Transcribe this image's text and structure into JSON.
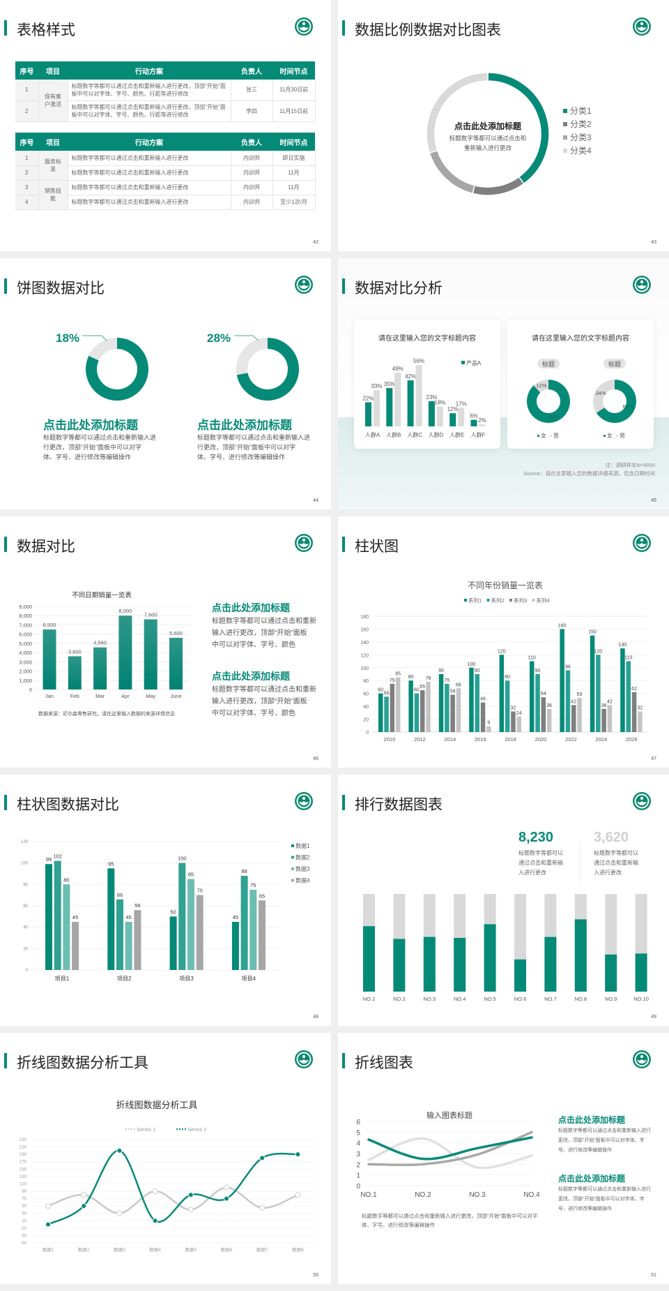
{
  "colors": {
    "accent": "#068a78",
    "accent2": "#30a192",
    "accent3": "#6dbdb2",
    "gray_dark": "#7f7f7f",
    "gray_mid": "#a6a6a6",
    "gray_light": "#d9d9d9"
  },
  "logo": {
    "icon": "university-emblem-logo"
  },
  "slide42": {
    "title": "表格样式",
    "page": "42",
    "tables": [
      {
        "headers": [
          "序号",
          "项目",
          "行动方案",
          "负责人",
          "时间节点"
        ],
        "groups": [
          {
            "item": "保有客户激活",
            "rows": [
              {
                "no": "1",
                "plan": "标题数字等都可以通过点击和重新输入进行更改，顶部“开始”面板中可以对字体、字号、颜色、行距等进行修改",
                "owner": "张三",
                "time": "11月30日前"
              },
              {
                "no": "2",
                "plan": "标题数字等都可以通过点击和重新输入进行更改，顶部“开始”面板中可以对字体、字号、颜色、行距等进行修改",
                "owner": "李四",
                "time": "11月15日前"
              }
            ]
          }
        ]
      },
      {
        "headers": [
          "序号",
          "项目",
          "行动方案",
          "负责人",
          "时间节点"
        ],
        "groups": [
          {
            "item": "服务标准",
            "rows": [
              {
                "no": "1",
                "plan": "标题数字等都可以通过点击和重新输入进行更改",
                "owner": "内训师",
                "time": "即日实施"
              },
              {
                "no": "2",
                "plan": "标题数字等都可以通过点击和重新输入进行更改",
                "owner": "内训师",
                "time": "11月"
              }
            ]
          },
          {
            "item": "销售技能",
            "rows": [
              {
                "no": "3",
                "plan": "标题数字等都可以通过点击和重新输入进行更改",
                "owner": "内训师",
                "time": "11月"
              },
              {
                "no": "4",
                "plan": "标题数字等都可以通过点击和重新输入进行更改",
                "owner": "内训师",
                "time": "至少1次/月"
              }
            ]
          }
        ]
      }
    ]
  },
  "slide43": {
    "title": "数据比例数据对比图表",
    "page": "43",
    "center_title": "点击此处添加标题",
    "center_lines": [
      "标题数字等都可以通过点击和",
      "重新输入进行更改"
    ]
  },
  "slide44": {
    "title": "饼图数据对比",
    "page": "44",
    "blocks": [
      {
        "heading": "点击此处添加标题",
        "lines": [
          "标题数字等都可以通过点击和重新输入进",
          "行更改，顶部“开始”面板中可以对字",
          "体、字号、进行修改等编辑操作"
        ]
      },
      {
        "heading": "点击此处添加标题",
        "lines": [
          "标题数字等都可以通过点击和重新输入进",
          "行更改，顶部“开始”面板中可以对字",
          "体、字号、进行修改等编辑操作"
        ]
      }
    ]
  },
  "slide45": {
    "title": "数据对比分析",
    "page": "45",
    "note": "注：调研样本N=9000",
    "source": "Source：请在这里输入您的数据详细来源，包含日期时间"
  },
  "slide46": {
    "title": "数据对比",
    "page": "46",
    "source": "数据来源：尼尔森零售研究，请在这里输入数据的来源详情信息",
    "blocks": [
      {
        "heading": "点击此处添加标题",
        "lines": [
          "标题数字等都可以通过点击和重新",
          "输入进行更改，顶部“开始”面板",
          "中可以对字体、字号、颜色"
        ]
      },
      {
        "heading": "点击此处添加标题",
        "lines": [
          "标题数字等都可以通过点击和重新",
          "输入进行更改，顶部“开始”面板",
          "中可以对字体、字号、颜色"
        ]
      }
    ]
  },
  "slide47": {
    "title": "柱状图",
    "page": "47"
  },
  "slide48": {
    "title": "柱状图数据对比",
    "page": "48"
  },
  "slide49": {
    "title": "排行数据图表",
    "page": "49",
    "stats": [
      {
        "value": "8,230",
        "lines": [
          "标题数字等都可以",
          "通过点击和重新输",
          "入进行更改"
        ]
      },
      {
        "value": "3,620",
        "lines": [
          "标题数字等都可以",
          "通过点击和重新输",
          "入进行更改"
        ]
      }
    ]
  },
  "slide50": {
    "title": "折线图数据分析工具",
    "page": "50"
  },
  "slide51": {
    "title": "折线图表",
    "page": "51",
    "bottom_lines": [
      "标题数字等都可以通过点击和重新输入进行更改，顶部“开始”面板中可以对字",
      "体、字号、进行修改等编辑操作"
    ],
    "blocks": [
      {
        "heading": "点击此处添加标题",
        "lines": [
          "标题数字等都可以通过点击和重新输入进行",
          "更改，顶部“开始”面板中可以对字体、字",
          "号、进行修改等编辑操作"
        ]
      },
      {
        "heading": "点击此处添加标题",
        "lines": [
          "标题数字等都可以通过点击和重新输入进行",
          "更改，顶部“开始”面板中可以对字体、字",
          "号、进行修改等编辑操作"
        ]
      }
    ]
  },
  "chart_data": [
    {
      "type": "pie",
      "slide": "43",
      "categories": [
        "分类1",
        "分类2",
        "分类3",
        "分类4"
      ],
      "values": [
        40,
        14,
        16,
        30
      ],
      "legend": "right",
      "colors": [
        "#068a78",
        "#7f7f7f",
        "#a6a6a6",
        "#d9d9d9"
      ]
    },
    {
      "type": "pie",
      "slide": "44",
      "value_percent": 18,
      "label": "18%"
    },
    {
      "type": "pie",
      "slide": "44",
      "value_percent": 28,
      "label": "28%"
    },
    {
      "type": "bar",
      "slide": "45",
      "title": "请在这里输入您的文字标题内容",
      "categories": [
        "人群A",
        "人群B",
        "人群C",
        "人群D",
        "人群E",
        "人群F"
      ],
      "series": [
        {
          "name": "产品A",
          "values": [
            22,
            35,
            42,
            23,
            12,
            6
          ],
          "labels": [
            "22%",
            "35%",
            "42%",
            "23%",
            "12%",
            "6%"
          ]
        },
        {
          "values": [
            33,
            49,
            56,
            18,
            17,
            2
          ],
          "labels": [
            "33%",
            "49%",
            "56%",
            "18%",
            "17%",
            "2%"
          ]
        }
      ],
      "unit": "%",
      "legend": "top-right"
    },
    {
      "type": "pie",
      "slide": "45",
      "title": "请在这里输入您的文字标题内容",
      "legend": [
        "女",
        "男"
      ],
      "charts": [
        {
          "label": "标题",
          "female": 88,
          "male": 12,
          "female_label": "88%",
          "male_label": "12%"
        },
        {
          "label": "标题",
          "female": 66,
          "male": 34,
          "female_label": "66%",
          "male_label": "34%"
        }
      ]
    },
    {
      "type": "bar",
      "slide": "46",
      "title": "不同日期销量一览表",
      "categories": [
        "Jan",
        "Feb",
        "Mar",
        "Apr",
        "May",
        "June"
      ],
      "values": [
        6500,
        3600,
        4560,
        8000,
        7600,
        5600
      ],
      "value_labels": [
        "6,500",
        "3,600",
        "4,560",
        "8,000",
        "7,600",
        "5,600"
      ],
      "ylim": [
        0,
        9000
      ],
      "yticks": [
        "0",
        "1,000",
        "2,000",
        "3,000",
        "4,000",
        "5,000",
        "6,000",
        "7,000",
        "8,000",
        "9,000"
      ],
      "grid": true
    },
    {
      "type": "bar",
      "slide": "47",
      "title": "不同年份销量一览表",
      "categories": [
        "2010",
        "2012",
        "2014",
        "2016",
        "2018",
        "2020",
        "2022",
        "2024",
        "2026"
      ],
      "series": [
        {
          "name": "系列1",
          "values": [
            60,
            80,
            90,
            100,
            120,
            110,
            160,
            150,
            130
          ]
        },
        {
          "name": "系列2",
          "values": [
            55,
            60,
            75,
            90,
            80,
            90,
            96,
            120,
            110
          ]
        },
        {
          "name": "系列3",
          "values": [
            75,
            65,
            58,
            46,
            32,
            54,
            42,
            36,
            62
          ]
        },
        {
          "name": "系列4",
          "values": [
            85,
            78,
            68,
            9,
            24,
            36,
            53,
            42,
            32
          ]
        }
      ],
      "ylim": [
        0,
        180
      ],
      "yticks": [
        "0",
        "20",
        "40",
        "60",
        "80",
        "100",
        "120",
        "140",
        "160",
        "180"
      ],
      "legend": "top",
      "grid": true
    },
    {
      "type": "bar",
      "slide": "48",
      "categories": [
        "项目1",
        "项目2",
        "项目3",
        "项目4"
      ],
      "series": [
        {
          "name": "数据1",
          "values": [
            99,
            95,
            50,
            45
          ]
        },
        {
          "name": "数据2",
          "values": [
            102,
            66,
            100,
            88
          ]
        },
        {
          "name": "数据3",
          "values": [
            80,
            45,
            85,
            75
          ]
        },
        {
          "name": "数据4",
          "values": [
            45,
            56,
            70,
            65
          ]
        }
      ],
      "ylim": [
        0,
        120
      ],
      "yticks": [
        "0",
        "20",
        "40",
        "60",
        "80",
        "100",
        "120"
      ],
      "legend": "right",
      "grid": true
    },
    {
      "type": "bar",
      "slide": "49",
      "stacked": true,
      "categories": [
        "NO.1",
        "NO.2",
        "NO.3",
        "NO.4",
        "NO.5",
        "NO.6",
        "NO.7",
        "NO.8",
        "NO.9",
        "NO.10"
      ],
      "values_percent": [
        67,
        54,
        56,
        55,
        69,
        33,
        56,
        74,
        38,
        39
      ]
    },
    {
      "type": "line",
      "slide": "50",
      "title": "折线图数据分析工具",
      "categories": [
        "数据1",
        "数据2",
        "数据3",
        "数据4",
        "数据5",
        "数据6",
        "数据7",
        "数据8"
      ],
      "series": [
        {
          "name": "Series 1",
          "values": [
            50,
            80,
            30,
            90,
            40,
            100,
            45,
            80
          ]
        },
        {
          "name": "Series 2",
          "values": [
            0,
            50,
            200,
            10,
            80,
            70,
            180,
            190
          ]
        }
      ],
      "ylim": [
        -50,
        230
      ],
      "yticks": [
        "-50",
        "-30",
        "-10",
        "10",
        "30",
        "50",
        "70",
        "90",
        "110",
        "130",
        "150",
        "170",
        "190",
        "210",
        "230"
      ],
      "legend": "top",
      "smooth": true
    },
    {
      "type": "line",
      "slide": "51",
      "title": "输入图表标题",
      "categories": [
        "NO.1",
        "NO.2",
        "NO.3",
        "NO.4"
      ],
      "series": [
        {
          "values": [
            4.3,
            2.5,
            3.5,
            4.5
          ]
        },
        {
          "values": [
            2.4,
            4.4,
            1.7,
            2.8
          ]
        },
        {
          "values": [
            2,
            2,
            2.9,
            5
          ]
        }
      ],
      "ylim": [
        0,
        6
      ],
      "yticks": [
        "0",
        "1",
        "2",
        "3",
        "4",
        "5",
        "6"
      ],
      "smooth": true
    }
  ]
}
